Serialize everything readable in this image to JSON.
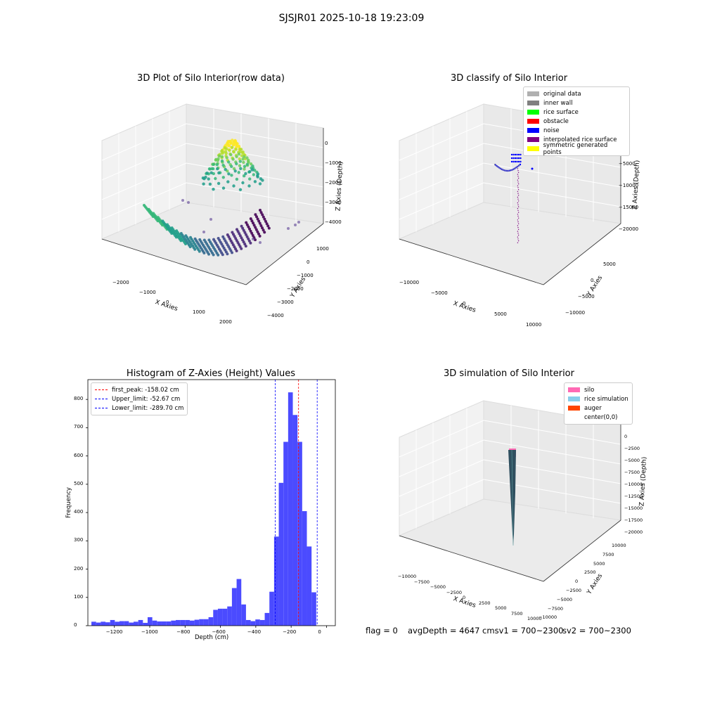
{
  "page": {
    "suptitle": "SJSJR01 2025-10-18 19:23:09"
  },
  "panels": {
    "raw": {
      "title": "3D Plot of Silo Interior(row data)",
      "xlabel": "X Axies",
      "ylabel": "Y Axies",
      "zlabel": "Z Axies (Depth)",
      "xticks": [
        "−2000",
        "−1000",
        "0",
        "1000",
        "2000"
      ],
      "yticks": [
        "1000",
        "0",
        "−1000",
        "−2000",
        "−3000",
        "−4000"
      ],
      "zticks": [
        "0",
        "−1000",
        "−2000",
        "−3000",
        "−4000"
      ]
    },
    "classify": {
      "title": "3D classify of Silo Interior",
      "xlabel": "X Axies",
      "ylabel": "Y Axies",
      "zlabel": "Z Axies (Depth)",
      "xticks": [
        "−10000",
        "−5000",
        "0",
        "5000",
        "10000"
      ],
      "yticks": [
        "5000",
        "0",
        "−5000",
        "−10000"
      ],
      "zticks": [
        "0",
        "−5000",
        "−10000",
        "−15000",
        "−20000"
      ],
      "legend": [
        {
          "label": "original data",
          "color": "#b0b0b0"
        },
        {
          "label": "inner wall",
          "color": "#808080"
        },
        {
          "label": "rice surface",
          "color": "#00ff00"
        },
        {
          "label": "obstacle",
          "color": "#ff0000"
        },
        {
          "label": "noise",
          "color": "#0000ff"
        },
        {
          "label": "interpolated rice surface",
          "color": "#800080"
        },
        {
          "label": "symmetric generated points",
          "color": "#ffff00"
        }
      ]
    },
    "simulation": {
      "title": "3D simulation of Silo Interior",
      "xlabel": "X Axies",
      "ylabel": "Y Axies",
      "zlabel": "Z Axies (Depth)",
      "xticks": [
        "−10000",
        "−7500",
        "−5000",
        "−2500",
        "0",
        "2500",
        "5000",
        "7500",
        "10000"
      ],
      "yticks": [
        "10000",
        "7500",
        "5000",
        "2500",
        "0",
        "−2500",
        "−5000",
        "−7500",
        "−10000"
      ],
      "zticks": [
        "0",
        "−2500",
        "−5000",
        "−7500",
        "−10000",
        "−12500",
        "−15000",
        "−17500",
        "−20000"
      ],
      "legend": [
        {
          "label": "silo",
          "color": "#ff69b4"
        },
        {
          "label": "rice simulation",
          "color": "#87ceeb"
        },
        {
          "label": "auger",
          "color": "#ff4500"
        },
        {
          "label": "center(0,0)",
          "color": ""
        }
      ]
    }
  },
  "status": {
    "flag": "flag = 0",
    "avg": "avgDepth = 4647 cmsv1 = 700~2300",
    "sv2": "sv2 = 700~2300"
  },
  "chart_data": [
    {
      "type": "scatter",
      "title": "3D Plot of Silo Interior(row data)",
      "xlabel": "X Axies",
      "ylabel": "Y Axies",
      "zlabel": "Z Axies (Depth)",
      "xlim": [
        -2400,
        2600
      ],
      "ylim": [
        -4500,
        1400
      ],
      "zlim": [
        -4400,
        200
      ]
    },
    {
      "type": "scatter",
      "title": "3D classify of Silo Interior",
      "xlabel": "X Axies",
      "ylabel": "Y Axies",
      "zlabel": "Z Axies (Depth)",
      "xlim": [
        -11000,
        11000
      ],
      "ylim": [
        -11000,
        8000
      ],
      "zlim": [
        -22000,
        2000
      ],
      "series": [
        {
          "name": "original data"
        },
        {
          "name": "inner wall"
        },
        {
          "name": "rice surface"
        },
        {
          "name": "obstacle"
        },
        {
          "name": "noise"
        },
        {
          "name": "interpolated rice surface"
        },
        {
          "name": "symmetric generated points"
        }
      ]
    },
    {
      "type": "bar",
      "title": "Histogram of Z-Axies (Height) Values",
      "xlabel": "Depth (cm)",
      "ylabel": "Frequency",
      "xlim": [
        -1350,
        50
      ],
      "ylim": [
        0,
        870
      ],
      "xticks": [
        -1200,
        -1000,
        -800,
        -600,
        -400,
        -200,
        0
      ],
      "yticks": [
        0,
        100,
        200,
        300,
        400,
        500,
        600,
        700,
        800
      ],
      "bin_start": -1330,
      "bin_width": 26.5,
      "values": [
        14,
        11,
        14,
        12,
        20,
        14,
        16,
        16,
        11,
        14,
        20,
        10,
        30,
        18,
        15,
        15,
        15,
        18,
        20,
        20,
        20,
        18,
        21,
        23,
        23,
        30,
        56,
        60,
        60,
        68,
        133,
        165,
        75,
        20,
        16,
        22,
        20,
        45,
        120,
        315,
        505,
        650,
        825,
        745,
        650,
        405,
        280,
        118
      ],
      "vlines": [
        {
          "label": "first_peak: -158.02 cm",
          "x": -158.02,
          "color": "#ff0000"
        },
        {
          "label": "Upper_limit: -52.67 cm",
          "x": -52.67,
          "color": "#0000ff"
        },
        {
          "label": "Lower_limit: -289.70 cm",
          "x": -289.7,
          "color": "#0000ff"
        }
      ]
    },
    {
      "type": "area",
      "title": "3D simulation of Silo Interior",
      "xlabel": "X Axies",
      "ylabel": "Y Axies",
      "zlabel": "Z Axies (Depth)",
      "xlim": [
        -11000,
        11000
      ],
      "ylim": [
        -11000,
        11000
      ],
      "zlim": [
        -21000,
        1000
      ],
      "series": [
        {
          "name": "silo"
        },
        {
          "name": "rice simulation"
        },
        {
          "name": "auger"
        },
        {
          "name": "center(0,0)"
        }
      ]
    }
  ]
}
